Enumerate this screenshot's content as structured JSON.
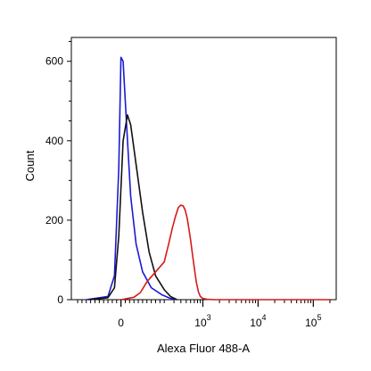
{
  "chart_data": {
    "type": "line",
    "title": "",
    "xlabel": "Alexa Fluor 488-A",
    "ylabel": "Count",
    "x_scale": "biexponential",
    "ylim": [
      0,
      660
    ],
    "y_ticks": [
      0,
      200,
      400,
      600
    ],
    "x_ticks": [
      {
        "value": 0,
        "base": "0",
        "exp": ""
      },
      {
        "value": 1000,
        "base": "10",
        "exp": "3"
      },
      {
        "value": 10000,
        "base": "10",
        "exp": "4"
      },
      {
        "value": 100000,
        "base": "10",
        "exp": "5"
      }
    ],
    "grid": false,
    "legend": "none",
    "series": [
      {
        "color": "#1a1ad6",
        "x": [
          -160,
          -60,
          -30,
          -10,
          0,
          10,
          25,
          45,
          70,
          100,
          140,
          190,
          250,
          330
        ],
        "y": [
          0,
          8,
          60,
          330,
          610,
          600,
          450,
          260,
          140,
          70,
          30,
          12,
          4,
          0
        ]
      },
      {
        "color": "#111111",
        "x": [
          -150,
          -60,
          -30,
          -10,
          10,
          30,
          45,
          60,
          80,
          100,
          130,
          160,
          200,
          260,
          340
        ],
        "y": [
          0,
          5,
          30,
          160,
          400,
          465,
          440,
          380,
          300,
          220,
          120,
          60,
          25,
          8,
          0
        ]
      },
      {
        "color": "#d61a1a",
        "x": [
          0,
          60,
          90,
          120,
          160,
          200,
          240,
          280,
          320,
          360,
          400,
          440,
          480,
          520,
          560,
          600,
          640,
          700,
          760,
          830,
          900,
          1000,
          1200,
          1600,
          3000,
          10000,
          50000,
          200000
        ],
        "y": [
          0,
          6,
          18,
          45,
          70,
          95,
          140,
          180,
          210,
          232,
          238,
          236,
          225,
          205,
          178,
          150,
          120,
          80,
          45,
          20,
          8,
          3,
          1,
          0,
          0,
          0,
          0,
          0
        ]
      }
    ]
  }
}
